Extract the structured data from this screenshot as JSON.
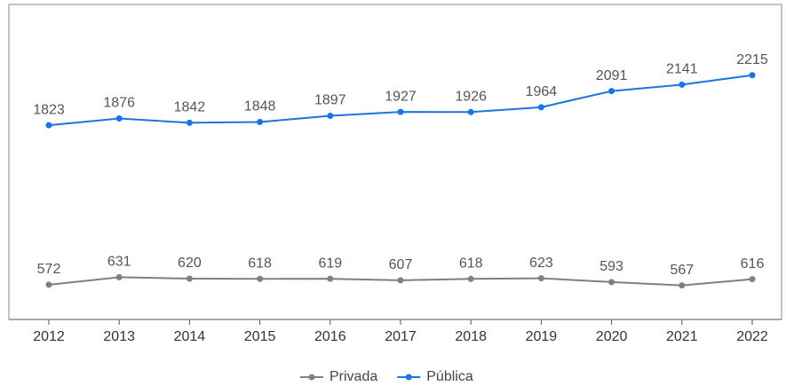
{
  "chart_data": {
    "type": "line",
    "categories": [
      "2012",
      "2013",
      "2014",
      "2015",
      "2016",
      "2017",
      "2018",
      "2019",
      "2020",
      "2021",
      "2022"
    ],
    "series": [
      {
        "name": "Privada",
        "color": "#808080",
        "values": [
          572,
          631,
          620,
          618,
          619,
          607,
          618,
          623,
          593,
          567,
          616
        ]
      },
      {
        "name": "Pública",
        "color": "#1a75e0",
        "values": [
          1823,
          1876,
          1842,
          1848,
          1897,
          1927,
          1926,
          1964,
          2091,
          2141,
          2215
        ]
      }
    ],
    "ylim": [
      300,
      2770
    ]
  }
}
